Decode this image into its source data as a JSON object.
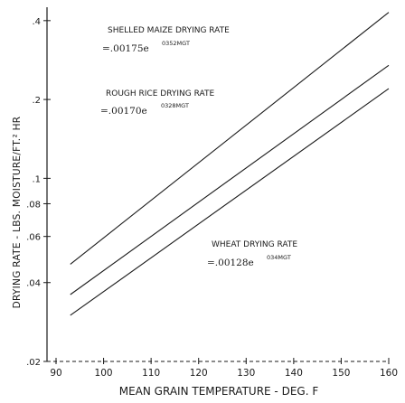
{
  "chart_data": {
    "type": "line",
    "ylabel": "DRYING RATE - LBS. MOISTURE/FT.² HR",
    "xlabel": "MEAN GRAIN TEMPERATURE - DEG. F",
    "scale": {
      "y": "log"
    },
    "xlim": [
      90,
      160
    ],
    "ylim": [
      0.02,
      0.45
    ],
    "x_ticks": [
      90,
      100,
      110,
      120,
      130,
      140,
      150,
      160
    ],
    "x_tick_labels": [
      "90",
      "100",
      "110",
      "120",
      "130",
      "140",
      "150",
      "160"
    ],
    "y_ticks": [
      0.02,
      0.04,
      0.06,
      0.08,
      0.1,
      0.2,
      0.4
    ],
    "y_tick_labels": [
      ".02",
      ".04",
      ".06",
      ".08",
      ".1",
      ".2",
      ".4"
    ],
    "series": [
      {
        "name": "SHELLED MAIZE DRYING RATE",
        "equation": "=.00175e",
        "exponent": "0352MGT",
        "x": [
          93,
          160
        ],
        "y": [
          0.047,
          0.43
        ]
      },
      {
        "name": "ROUGH RICE DRYING RATE",
        "equation": "=.00170e",
        "exponent": "0328MGT",
        "x": [
          93,
          160
        ],
        "y": [
          0.036,
          0.27
        ]
      },
      {
        "name": "WHEAT DRYING RATE",
        "equation": "=.00128e",
        "exponent": "034MGT",
        "x": [
          93,
          160
        ],
        "y": [
          0.03,
          0.22
        ]
      }
    ]
  }
}
